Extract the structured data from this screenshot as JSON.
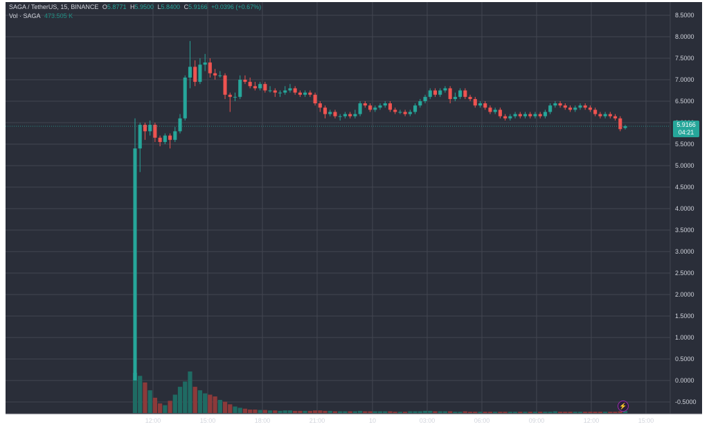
{
  "header": {
    "symbol_line": "SAGA / TetherUS, 15, BINANCE",
    "o_label": "O",
    "o_value": "5.8771",
    "h_label": "H",
    "h_value": "5.9500",
    "l_label": "L",
    "l_value": "5.8400",
    "c_label": "C",
    "c_value": "5.9166",
    "change": "+0.0396 (+0.67%)",
    "vol_label": "Vol · SAGA",
    "vol_value": "473.505 K"
  },
  "price_tag": {
    "price": "5.9166",
    "countdown": "04:21"
  },
  "icons": {
    "event_badge": "lightning-bolt-icon"
  },
  "colors": {
    "background": "#2a2e39",
    "grid": "#434651",
    "up": "#26a69a",
    "down": "#ef5350",
    "vol_up": "#1f6b63",
    "vol_down": "#8c3a3a",
    "text": "#d1d4dc"
  },
  "chart_data": {
    "type": "candlestick",
    "y_ticks": [
      "8.5000",
      "8.0000",
      "7.5000",
      "7.0000",
      "6.5000",
      "6.0000",
      "5.5000",
      "5.0000",
      "4.5000",
      "4.0000",
      "3.5000",
      "3.0000",
      "2.5000",
      "2.0000",
      "1.5000",
      "1.0000",
      "0.5000",
      "0.0000",
      "-0.5000"
    ],
    "ylim": [
      -0.7,
      8.75
    ],
    "x_ticks": [
      "12:00",
      "15:00",
      "18:00",
      "21:00",
      "10",
      "03:00",
      "06:00",
      "09:00",
      "12:00",
      "15:00"
    ],
    "candles": [
      [
        0.0,
        5.4,
        6.1,
        0.0
      ],
      [
        5.4,
        5.95,
        6.0,
        4.85
      ],
      [
        5.95,
        5.8,
        6.0,
        5.6
      ],
      [
        5.8,
        5.95,
        6.05,
        5.7
      ],
      [
        5.95,
        5.65,
        6.0,
        5.55
      ],
      [
        5.65,
        5.55,
        5.7,
        5.45
      ],
      [
        5.55,
        5.7,
        5.75,
        5.5
      ],
      [
        5.7,
        5.6,
        5.75,
        5.4
      ],
      [
        5.6,
        5.8,
        5.9,
        5.55
      ],
      [
        5.8,
        6.1,
        6.2,
        5.75
      ],
      [
        6.1,
        7.05,
        7.1,
        6.05
      ],
      [
        7.05,
        7.3,
        7.9,
        6.8
      ],
      [
        7.3,
        6.95,
        7.45,
        6.85
      ],
      [
        6.95,
        7.35,
        7.5,
        6.9
      ],
      [
        7.35,
        7.4,
        7.6,
        7.2
      ],
      [
        7.4,
        7.15,
        7.5,
        7.05
      ],
      [
        7.15,
        7.1,
        7.25,
        7.0
      ],
      [
        7.1,
        7.1,
        7.2,
        7.05
      ],
      [
        7.1,
        6.65,
        7.15,
        6.55
      ],
      [
        6.65,
        6.6,
        6.7,
        6.25
      ],
      [
        6.6,
        6.6,
        6.7,
        6.5
      ],
      [
        6.6,
        7.0,
        7.1,
        6.55
      ],
      [
        7.0,
        6.95,
        7.1,
        6.9
      ],
      [
        6.95,
        6.85,
        7.05,
        6.8
      ],
      [
        6.85,
        6.8,
        6.95,
        6.75
      ],
      [
        6.8,
        6.9,
        6.95,
        6.75
      ],
      [
        6.9,
        6.75,
        6.95,
        6.7
      ],
      [
        6.75,
        6.75,
        6.85,
        6.7
      ],
      [
        6.75,
        6.7,
        6.8,
        6.6
      ],
      [
        6.7,
        6.7,
        6.75,
        6.6
      ],
      [
        6.7,
        6.75,
        6.85,
        6.65
      ],
      [
        6.75,
        6.8,
        6.9,
        6.7
      ],
      [
        6.8,
        6.7,
        6.85,
        6.65
      ],
      [
        6.7,
        6.65,
        6.75,
        6.6
      ],
      [
        6.65,
        6.7,
        6.75,
        6.6
      ],
      [
        6.7,
        6.65,
        6.75,
        6.6
      ],
      [
        6.65,
        6.45,
        6.7,
        6.4
      ],
      [
        6.45,
        6.35,
        6.5,
        6.25
      ],
      [
        6.35,
        6.2,
        6.4,
        6.1
      ],
      [
        6.2,
        6.25,
        6.3,
        6.15
      ],
      [
        6.25,
        6.15,
        6.3,
        6.1
      ],
      [
        6.15,
        6.15,
        6.2,
        6.05
      ],
      [
        6.15,
        6.2,
        6.25,
        6.1
      ],
      [
        6.2,
        6.15,
        6.25,
        6.1
      ],
      [
        6.15,
        6.2,
        6.3,
        6.1
      ],
      [
        6.2,
        6.45,
        6.5,
        6.15
      ],
      [
        6.45,
        6.4,
        6.5,
        6.35
      ],
      [
        6.4,
        6.3,
        6.45,
        6.25
      ],
      [
        6.3,
        6.35,
        6.4,
        6.25
      ],
      [
        6.35,
        6.4,
        6.45,
        6.3
      ],
      [
        6.4,
        6.45,
        6.5,
        6.35
      ],
      [
        6.45,
        6.3,
        6.5,
        6.25
      ],
      [
        6.3,
        6.25,
        6.35,
        6.2
      ],
      [
        6.25,
        6.25,
        6.3,
        6.2
      ],
      [
        6.25,
        6.2,
        6.3,
        6.15
      ],
      [
        6.2,
        6.25,
        6.3,
        6.15
      ],
      [
        6.25,
        6.4,
        6.45,
        6.2
      ],
      [
        6.4,
        6.5,
        6.55,
        6.35
      ],
      [
        6.5,
        6.6,
        6.65,
        6.45
      ],
      [
        6.6,
        6.75,
        6.8,
        6.55
      ],
      [
        6.75,
        6.65,
        6.8,
        6.6
      ],
      [
        6.65,
        6.75,
        6.8,
        6.6
      ],
      [
        6.75,
        6.8,
        6.85,
        6.7
      ],
      [
        6.8,
        6.55,
        6.85,
        6.45
      ],
      [
        6.55,
        6.6,
        6.7,
        6.5
      ],
      [
        6.6,
        6.75,
        6.8,
        6.55
      ],
      [
        6.75,
        6.6,
        6.8,
        6.55
      ],
      [
        6.6,
        6.55,
        6.65,
        6.5
      ],
      [
        6.55,
        6.4,
        6.6,
        6.35
      ],
      [
        6.4,
        6.45,
        6.5,
        6.35
      ],
      [
        6.45,
        6.35,
        6.5,
        6.3
      ],
      [
        6.35,
        6.25,
        6.4,
        6.2
      ],
      [
        6.25,
        6.3,
        6.35,
        6.2
      ],
      [
        6.3,
        6.15,
        6.35,
        6.1
      ],
      [
        6.15,
        6.1,
        6.2,
        6.05
      ],
      [
        6.1,
        6.15,
        6.2,
        6.05
      ],
      [
        6.15,
        6.2,
        6.25,
        6.1
      ],
      [
        6.2,
        6.15,
        6.25,
        6.1
      ],
      [
        6.15,
        6.2,
        6.25,
        6.1
      ],
      [
        6.2,
        6.15,
        6.25,
        6.1
      ],
      [
        6.15,
        6.2,
        6.25,
        6.1
      ],
      [
        6.2,
        6.15,
        6.25,
        6.1
      ],
      [
        6.15,
        6.25,
        6.3,
        6.1
      ],
      [
        6.25,
        6.4,
        6.45,
        6.2
      ],
      [
        6.4,
        6.45,
        6.5,
        6.35
      ],
      [
        6.45,
        6.4,
        6.5,
        6.35
      ],
      [
        6.4,
        6.35,
        6.45,
        6.3
      ],
      [
        6.35,
        6.3,
        6.4,
        6.25
      ],
      [
        6.3,
        6.35,
        6.4,
        6.25
      ],
      [
        6.35,
        6.4,
        6.45,
        6.3
      ],
      [
        6.4,
        6.35,
        6.45,
        6.3
      ],
      [
        6.35,
        6.3,
        6.4,
        6.25
      ],
      [
        6.3,
        6.2,
        6.35,
        6.15
      ],
      [
        6.2,
        6.15,
        6.25,
        6.1
      ],
      [
        6.15,
        6.2,
        6.25,
        6.1
      ],
      [
        6.2,
        6.15,
        6.25,
        6.1
      ],
      [
        6.15,
        6.1,
        6.2,
        6.05
      ],
      [
        6.1,
        5.85,
        6.15,
        5.8
      ],
      [
        5.8771,
        5.9166,
        5.95,
        5.84
      ]
    ],
    "volumes": [
      92,
      85,
      70,
      52,
      35,
      22,
      18,
      28,
      42,
      60,
      72,
      95,
      60,
      52,
      45,
      42,
      38,
      30,
      26,
      20,
      15,
      12,
      10,
      8,
      8,
      7,
      7,
      6,
      6,
      5,
      6,
      6,
      5,
      5,
      5,
      5,
      6,
      6,
      5,
      5,
      4,
      4,
      4,
      4,
      4,
      5,
      4,
      4,
      4,
      4,
      4,
      4,
      3,
      3,
      3,
      4,
      4,
      4,
      5,
      5,
      4,
      4,
      4,
      4,
      3,
      3,
      4,
      3,
      3,
      3,
      3,
      3,
      3,
      3,
      3,
      3,
      3,
      3,
      3,
      3,
      3,
      3,
      3,
      3,
      4,
      3,
      3,
      3,
      3,
      3,
      3,
      3,
      3,
      3,
      3,
      3,
      3,
      4,
      5
    ]
  }
}
